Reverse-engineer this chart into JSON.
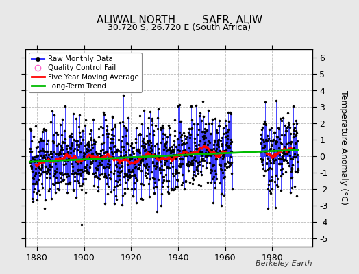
{
  "title": "ALIWAL NORTH        SAFR  ALIW",
  "subtitle": "30.720 S, 26.720 E (South Africa)",
  "ylabel": "Temperature Anomaly (°C)",
  "watermark": "Berkeley Earth",
  "xlim": [
    1875,
    1997
  ],
  "ylim": [
    -5.5,
    6.5
  ],
  "yticks": [
    -5,
    -4,
    -3,
    -2,
    -1,
    0,
    1,
    2,
    3,
    4,
    5,
    6
  ],
  "xticks": [
    1880,
    1900,
    1920,
    1940,
    1960,
    1980
  ],
  "bg_color": "#e8e8e8",
  "plot_bg_color": "#ffffff",
  "line_color": "#3333ff",
  "ma_color": "#ff0000",
  "trend_color": "#00bb00",
  "seed": 42,
  "start_year": 1877.0,
  "end_year_1": 1962.0,
  "end_year_2": 1975.0,
  "final_year": 1991.0
}
